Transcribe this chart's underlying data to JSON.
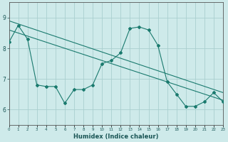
{
  "xlabel": "Humidex (Indice chaleur)",
  "background_color": "#ceeaea",
  "grid_color": "#aacfcf",
  "line_color": "#1a7a6e",
  "xlim": [
    0,
    23
  ],
  "ylim": [
    5.5,
    9.5
  ],
  "yticks": [
    6,
    7,
    8,
    9
  ],
  "xtick_labels": [
    "0",
    "1",
    "2",
    "3",
    "4",
    "5",
    "6",
    "7",
    "8",
    "9",
    "10",
    "11",
    "12",
    "13",
    "14",
    "15",
    "16",
    "17",
    "18",
    "19",
    "20",
    "21",
    "22",
    "23"
  ],
  "curve1_x": [
    0,
    1,
    2,
    3,
    4,
    5,
    6,
    7,
    8,
    9,
    10,
    11,
    12,
    13,
    14,
    15,
    16,
    17,
    18,
    19,
    20,
    21,
    22,
    23
  ],
  "curve1_y": [
    8.2,
    8.75,
    8.3,
    6.8,
    6.75,
    6.75,
    6.2,
    6.65,
    6.65,
    6.8,
    7.5,
    7.6,
    7.85,
    8.65,
    8.7,
    8.6,
    8.1,
    6.9,
    6.5,
    6.1,
    6.1,
    6.25,
    6.55,
    6.25
  ],
  "trend1_x": [
    0,
    23
  ],
  "trend1_y": [
    8.9,
    6.55
  ],
  "trend2_x": [
    0,
    23
  ],
  "trend2_y": [
    8.6,
    6.3
  ]
}
